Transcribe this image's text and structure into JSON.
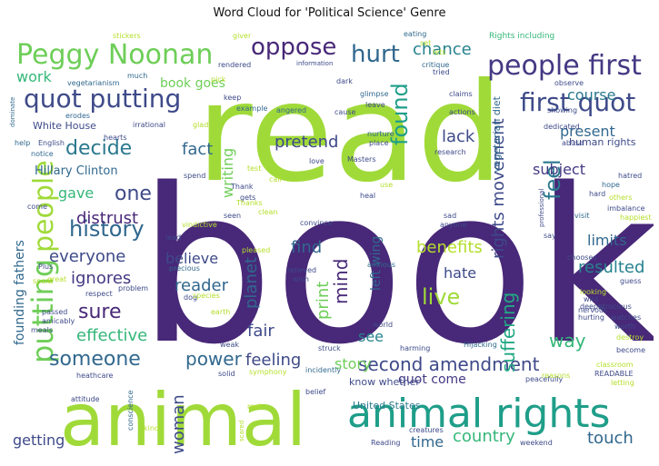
{
  "title": "Word Cloud for 'Political Science' Genre",
  "chart_data": {
    "type": "wordcloud",
    "title": "Word Cloud for 'Political Science' Genre",
    "palette": [
      "#482878",
      "#3e4a89",
      "#31688e",
      "#26828e",
      "#1f9e89",
      "#35b779",
      "#6ece58",
      "#b5de2b",
      "#fde725"
    ],
    "words": [
      {
        "text": "book",
        "color": "#482878"
      },
      {
        "text": "read",
        "color": "#a0da39"
      },
      {
        "text": "animal",
        "color": "#a0da39"
      },
      {
        "text": "animal rights",
        "color": "#1f9e89"
      },
      {
        "text": "Peggy Noonan",
        "color": "#6ece58"
      },
      {
        "text": "people first",
        "color": "#443983"
      },
      {
        "text": "quot putting",
        "color": "#3e4a89"
      },
      {
        "text": "first quot",
        "color": "#3e4a89"
      },
      {
        "text": "oppose",
        "color": "#482878"
      },
      {
        "text": "hurt",
        "color": "#31688e"
      },
      {
        "text": "chance",
        "color": "#26828e"
      },
      {
        "text": "putting",
        "color": "#6ece58"
      },
      {
        "text": "people",
        "color": "#a0da39"
      },
      {
        "text": "history",
        "color": "#31688e"
      },
      {
        "text": "decide",
        "color": "#2a788e"
      },
      {
        "text": "one",
        "color": "#3e4a89"
      },
      {
        "text": "sure",
        "color": "#482878"
      },
      {
        "text": "someone",
        "color": "#31688e"
      },
      {
        "text": "second amendment",
        "color": "#3e4a89"
      },
      {
        "text": "live",
        "color": "#a0da39"
      },
      {
        "text": "suffering",
        "color": "#22a884"
      },
      {
        "text": "rights movement",
        "color": "#3e4a89"
      },
      {
        "text": "found",
        "color": "#1f9e89"
      },
      {
        "text": "feel",
        "color": "#2a788e"
      },
      {
        "text": "country",
        "color": "#35b779"
      },
      {
        "text": "touch",
        "color": "#31688e"
      },
      {
        "text": "effective",
        "color": "#35b779"
      },
      {
        "text": "everyone",
        "color": "#3e4a89"
      },
      {
        "text": "distrust",
        "color": "#482878"
      },
      {
        "text": "gave",
        "color": "#35b779"
      },
      {
        "text": "ignores",
        "color": "#443983"
      },
      {
        "text": "reader",
        "color": "#31688e"
      },
      {
        "text": "believe",
        "color": "#3e4a89"
      },
      {
        "text": "planet",
        "color": "#31688e"
      },
      {
        "text": "print",
        "color": "#6ece58"
      },
      {
        "text": "mind",
        "color": "#482878"
      },
      {
        "text": "find",
        "color": "#31688e"
      },
      {
        "text": "hate",
        "color": "#3e4a89"
      },
      {
        "text": "benefits",
        "color": "#b5de2b"
      },
      {
        "text": "limits",
        "color": "#31688e"
      },
      {
        "text": "resulted",
        "color": "#26828e"
      },
      {
        "text": "way",
        "color": "#35b779"
      },
      {
        "text": "subject",
        "color": "#443983"
      },
      {
        "text": "present",
        "color": "#31688e"
      },
      {
        "text": "course",
        "color": "#2a788e"
      },
      {
        "text": "work",
        "color": "#35b779"
      },
      {
        "text": "book goes",
        "color": "#6ece58"
      },
      {
        "text": "fact",
        "color": "#31688e"
      },
      {
        "text": "writing",
        "color": "#6ece58"
      },
      {
        "text": "pretend",
        "color": "#3e4a89"
      },
      {
        "text": "lack",
        "color": "#3e4a89"
      },
      {
        "text": "power",
        "color": "#31688e"
      },
      {
        "text": "feeling",
        "color": "#3e4a89"
      },
      {
        "text": "fair",
        "color": "#3e4a89"
      },
      {
        "text": "see",
        "color": "#26828e"
      },
      {
        "text": "story",
        "color": "#6ece58"
      },
      {
        "text": "quot come",
        "color": "#443983"
      },
      {
        "text": "time",
        "color": "#31688e"
      },
      {
        "text": "woman",
        "color": "#3e4a89"
      },
      {
        "text": "getting",
        "color": "#3e4a89"
      },
      {
        "text": "left wing",
        "color": "#31688e"
      },
      {
        "text": "Hillary Clinton",
        "color": "#31688e"
      },
      {
        "text": "founding fathers",
        "color": "#31688e"
      },
      {
        "text": "vegetarian diet",
        "color": "#31688e"
      },
      {
        "text": "White House",
        "color": "#3e4a89"
      },
      {
        "text": "know whether",
        "color": "#3e4a89"
      },
      {
        "text": "United States",
        "color": "#2a788e"
      },
      {
        "text": "human rights",
        "color": "#3e4a89"
      },
      {
        "text": "Rights including",
        "color": "#35b779"
      },
      {
        "text": "vegetarianism",
        "color": "#31688e"
      },
      {
        "text": "much",
        "color": "#31688e"
      },
      {
        "text": "rendered",
        "color": "#3e4a89"
      },
      {
        "text": "information",
        "color": "#3e4a89"
      },
      {
        "text": "eating",
        "color": "#31688e"
      },
      {
        "text": "giver",
        "color": "#b5de2b"
      },
      {
        "text": "stickers",
        "color": "#b5de2b"
      },
      {
        "text": "critique",
        "color": "#31688e"
      },
      {
        "text": "observe",
        "color": "#3e4a89"
      },
      {
        "text": "irrational",
        "color": "#3e4a89"
      },
      {
        "text": "keep",
        "color": "#3e4a89"
      },
      {
        "text": "example",
        "color": "#31688e"
      },
      {
        "text": "angered",
        "color": "#31688e"
      },
      {
        "text": "cause",
        "color": "#3e4a89"
      },
      {
        "text": "glimpse",
        "color": "#31688e"
      },
      {
        "text": "leave",
        "color": "#3e4a89"
      },
      {
        "text": "claims",
        "color": "#3e4a89"
      },
      {
        "text": "actions",
        "color": "#3e4a89"
      },
      {
        "text": "dedicated",
        "color": "#3e4a89"
      },
      {
        "text": "showing",
        "color": "#3e4a89"
      },
      {
        "text": "abuse",
        "color": "#3e4a89"
      },
      {
        "text": "English",
        "color": "#3e4a89"
      },
      {
        "text": "notice",
        "color": "#31688e"
      },
      {
        "text": "help",
        "color": "#31688e"
      },
      {
        "text": "erodes",
        "color": "#31688e"
      },
      {
        "text": "dominate",
        "color": "#31688e"
      },
      {
        "text": "glad",
        "color": "#b5de2b"
      },
      {
        "text": "spend",
        "color": "#3e4a89"
      },
      {
        "text": "test",
        "color": "#b5de2b"
      },
      {
        "text": "call",
        "color": "#b5de2b"
      },
      {
        "text": "nurture",
        "color": "#31688e"
      },
      {
        "text": "place",
        "color": "#3e4a89"
      },
      {
        "text": "love",
        "color": "#3e4a89"
      },
      {
        "text": "Masters",
        "color": "#3e4a89"
      },
      {
        "text": "research",
        "color": "#3e4a89"
      },
      {
        "text": "hatred",
        "color": "#3e4a89"
      },
      {
        "text": "hope",
        "color": "#31688e"
      },
      {
        "text": "hard",
        "color": "#3e4a89"
      },
      {
        "text": "others",
        "color": "#b5de2b"
      },
      {
        "text": "imbalance",
        "color": "#3e4a89"
      },
      {
        "text": "happiest",
        "color": "#b5de2b"
      },
      {
        "text": "visit",
        "color": "#31688e"
      },
      {
        "text": "say",
        "color": "#3e4a89"
      },
      {
        "text": "Thank",
        "color": "#3e4a89"
      },
      {
        "text": "gets",
        "color": "#3e4a89"
      },
      {
        "text": "clean",
        "color": "#b5de2b"
      },
      {
        "text": "seen",
        "color": "#3e4a89"
      },
      {
        "text": "vindictive",
        "color": "#b5de2b"
      },
      {
        "text": "lead",
        "color": "#3e4a89"
      },
      {
        "text": "precious",
        "color": "#31688e"
      },
      {
        "text": "dog",
        "color": "#3e4a89"
      },
      {
        "text": "species",
        "color": "#b5de2b"
      },
      {
        "text": "earth",
        "color": "#b5de2b"
      },
      {
        "text": "convince",
        "color": "#3e4a89"
      },
      {
        "text": "relieved",
        "color": "#3e4a89"
      },
      {
        "text": "wish",
        "color": "#3e4a89"
      },
      {
        "text": "anyone",
        "color": "#3e4a89"
      },
      {
        "text": "anxious",
        "color": "#31688e"
      },
      {
        "text": "heal",
        "color": "#3e4a89"
      },
      {
        "text": "use",
        "color": "#b5de2b"
      },
      {
        "text": "sad",
        "color": "#3e4a89"
      },
      {
        "text": "chooses",
        "color": "#3e4a89"
      },
      {
        "text": "guess",
        "color": "#3e4a89"
      },
      {
        "text": "looking",
        "color": "#b5de2b"
      },
      {
        "text": "atrocious",
        "color": "#3e4a89"
      },
      {
        "text": "deeply",
        "color": "#3e4a89"
      },
      {
        "text": "hurting",
        "color": "#3e4a89"
      },
      {
        "text": "watches",
        "color": "#3e4a89"
      },
      {
        "text": "worth",
        "color": "#3e4a89"
      },
      {
        "text": "destroy",
        "color": "#b5de2b"
      },
      {
        "text": "become",
        "color": "#3e4a89"
      },
      {
        "text": "classroom",
        "color": "#b5de2b"
      },
      {
        "text": "READABLE",
        "color": "#3e4a89"
      },
      {
        "text": "letting",
        "color": "#b5de2b"
      },
      {
        "text": "peacefully",
        "color": "#3e4a89"
      },
      {
        "text": "reasons",
        "color": "#b5de2b"
      },
      {
        "text": "weekend",
        "color": "#3e4a89"
      },
      {
        "text": "creatures",
        "color": "#3e4a89"
      },
      {
        "text": "Reading",
        "color": "#3e4a89"
      },
      {
        "text": "Hijacking",
        "color": "#31688e"
      },
      {
        "text": "harming",
        "color": "#3e4a89"
      },
      {
        "text": "world",
        "color": "#3e4a89"
      },
      {
        "text": "struck",
        "color": "#3e4a89"
      },
      {
        "text": "incidently",
        "color": "#31688e"
      },
      {
        "text": "solid",
        "color": "#3e4a89"
      },
      {
        "text": "weak",
        "color": "#3e4a89"
      },
      {
        "text": "belief",
        "color": "#3e4a89"
      },
      {
        "text": "met",
        "color": "#b5de2b"
      },
      {
        "text": "kind",
        "color": "#b5de2b"
      },
      {
        "text": "scared",
        "color": "#b5de2b"
      },
      {
        "text": "conscience",
        "color": "#31688e"
      },
      {
        "text": "attitude",
        "color": "#3e4a89"
      },
      {
        "text": "heathcare",
        "color": "#3e4a89"
      },
      {
        "text": "passed",
        "color": "#3e4a89"
      },
      {
        "text": "amicably",
        "color": "#3e4a89"
      },
      {
        "text": "meals",
        "color": "#3e4a89"
      },
      {
        "text": "respect",
        "color": "#3e4a89"
      },
      {
        "text": "problem",
        "color": "#3e4a89"
      },
      {
        "text": "Plus",
        "color": "#3e4a89"
      },
      {
        "text": "great",
        "color": "#b5de2b"
      },
      {
        "text": "spent",
        "color": "#b5de2b"
      },
      {
        "text": "come",
        "color": "#3e4a89"
      },
      {
        "text": "hearts",
        "color": "#3e4a89"
      },
      {
        "text": "professional",
        "color": "#3e4a89"
      },
      {
        "text": "symphony",
        "color": "#b5de2b"
      },
      {
        "text": "Thanks",
        "color": "#b5de2b"
      },
      {
        "text": "dark",
        "color": "#3e4a89"
      },
      {
        "text": "pick",
        "color": "#b5de2b"
      },
      {
        "text": "set",
        "color": "#b5de2b"
      },
      {
        "text": "wild",
        "color": "#3e4a89"
      },
      {
        "text": "nervous",
        "color": "#3e4a89"
      },
      {
        "text": "lets",
        "color": "#b5de2b"
      },
      {
        "text": "tried",
        "color": "#3e4a89"
      },
      {
        "text": "pleased",
        "color": "#b5de2b"
      }
    ]
  }
}
